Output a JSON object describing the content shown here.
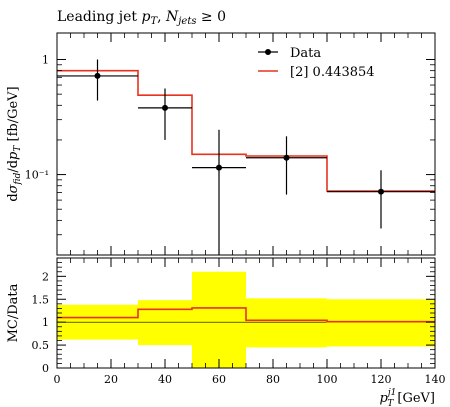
{
  "chart_data": [
    {
      "type": "line",
      "panel": "main",
      "title": "Leading jet p_T, N_jets ≥ 0",
      "ylabel": "dσ_fid/dp_T [fb/GeV]",
      "yscale": "log",
      "xlim": [
        0,
        140
      ],
      "ylim": [
        0.02,
        1.7
      ],
      "y_ticks": [
        {
          "value": 1,
          "label": "1"
        },
        {
          "value": 0.1,
          "label": "10⁻¹"
        }
      ],
      "bin_edges": [
        0,
        30,
        50,
        70,
        100,
        140
      ],
      "legend_position": "top-right",
      "series": [
        {
          "name": "Data",
          "style": "points-with-errors",
          "color": "#000000",
          "points": [
            {
              "x": 15,
              "xerr": 15,
              "y": 0.72,
              "ylo": 0.44,
              "yhi": 1.0
            },
            {
              "x": 40,
              "xerr": 10,
              "y": 0.38,
              "ylo": 0.2,
              "yhi": 0.56
            },
            {
              "x": 60,
              "xerr": 10,
              "y": 0.115,
              "ylo": 0.02,
              "yhi": 0.245
            },
            {
              "x": 85,
              "xerr": 15,
              "y": 0.14,
              "ylo": 0.067,
              "yhi": 0.215
            },
            {
              "x": 120,
              "xerr": 20,
              "y": 0.071,
              "ylo": 0.034,
              "yhi": 0.109
            }
          ]
        },
        {
          "name": "[2] 0.443854",
          "style": "histogram",
          "color": "#e8321e",
          "values": [
            0.8,
            0.49,
            0.15,
            0.145,
            0.072
          ]
        }
      ]
    },
    {
      "type": "line",
      "panel": "ratio",
      "ylabel": "MC/Data",
      "xlabel": "p_T^{j1} [GeV]",
      "xlim": [
        0,
        140
      ],
      "ylim": [
        0,
        2.4
      ],
      "x_ticks": [
        "0",
        "20",
        "40",
        "60",
        "80",
        "100",
        "120",
        "140"
      ],
      "y_ticks": [
        "0",
        "0.5",
        "1",
        "1.5",
        "2"
      ],
      "bin_edges": [
        0,
        30,
        50,
        70,
        100,
        140
      ],
      "band": {
        "color": "#ffff00",
        "lo": [
          0.62,
          0.5,
          0,
          0.45,
          0.47
        ],
        "hi": [
          1.38,
          1.48,
          2.1,
          1.52,
          1.5
        ]
      },
      "ratio_line": {
        "color": "#e8321e",
        "values": [
          1.1,
          1.28,
          1.31,
          1.04,
          1.01
        ]
      }
    }
  ]
}
